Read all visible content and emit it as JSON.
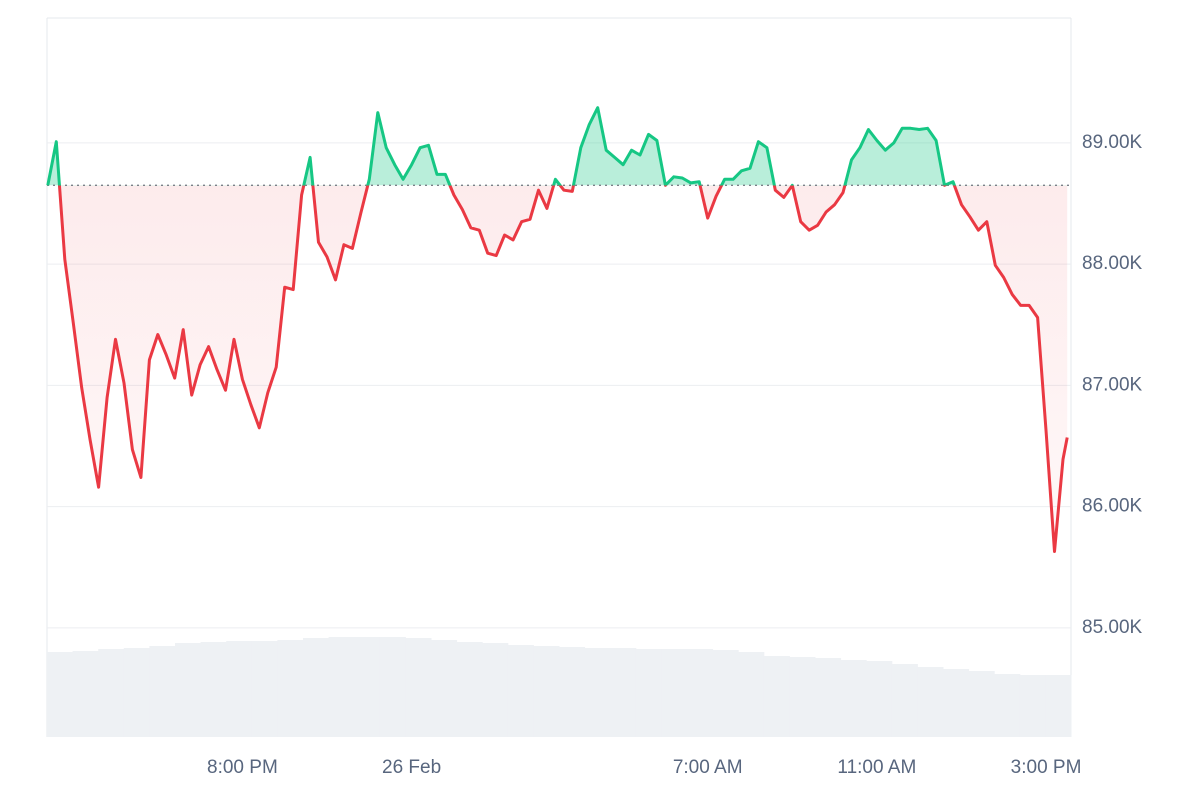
{
  "chart_data": {
    "type": "area-line",
    "x": [
      -8.6,
      -8.4,
      -8.2,
      -8.0,
      -7.8,
      -7.6,
      -7.4,
      -7.2,
      -7.0,
      -6.8,
      -6.6,
      -6.4,
      -6.2,
      -6.0,
      -5.8,
      -5.6,
      -5.4,
      -5.2,
      -5.0,
      -4.8,
      -4.6,
      -4.4,
      -4.2,
      -4.0,
      -3.8,
      -3.6,
      -3.4,
      -3.2,
      -3.0,
      -2.8,
      -2.6,
      -2.4,
      -2.2,
      -2.0,
      -1.8,
      -1.6,
      -1.4,
      -1.2,
      -1.0,
      -0.8,
      -0.6,
      -0.4,
      -0.2,
      0.0,
      0.2,
      0.4,
      0.6,
      0.8,
      1.0,
      1.2,
      1.4,
      1.6,
      1.8,
      2.0,
      2.2,
      2.4,
      2.6,
      2.8,
      3.0,
      3.2,
      3.4,
      3.6,
      3.8,
      4.0,
      4.2,
      4.4,
      4.6,
      4.8,
      5.0,
      5.2,
      5.4,
      5.6,
      5.8,
      6.0,
      6.2,
      6.4,
      6.6,
      6.8,
      7.0,
      7.2,
      7.4,
      7.6,
      7.8,
      8.0,
      8.2,
      8.4,
      8.6,
      8.8,
      9.0,
      9.2,
      9.4,
      9.6,
      9.8,
      10.0,
      10.2,
      10.4,
      10.6,
      10.8,
      11.0,
      11.2,
      11.4,
      11.6,
      11.8,
      12.0,
      12.2,
      12.4,
      12.6,
      12.8,
      13.0,
      13.2,
      13.4,
      13.6,
      13.8,
      14.0,
      14.2,
      14.4,
      14.6,
      14.8,
      15.0,
      15.2,
      15.4,
      15.5
    ],
    "values": [
      88650,
      89010,
      88040,
      87520,
      86980,
      86550,
      86160,
      86900,
      87380,
      87020,
      86470,
      86240,
      87210,
      87420,
      87250,
      87060,
      87460,
      86920,
      87170,
      87320,
      87130,
      86960,
      87380,
      87050,
      86840,
      86650,
      86940,
      87150,
      87810,
      87790,
      88570,
      88880,
      88180,
      88060,
      87870,
      88160,
      88130,
      88420,
      88700,
      89250,
      88960,
      88820,
      88700,
      88820,
      88960,
      88980,
      88740,
      88740,
      88570,
      88450,
      88300,
      88280,
      88090,
      88070,
      88240,
      88200,
      88350,
      88370,
      88610,
      88460,
      88700,
      88610,
      88600,
      88960,
      89150,
      89290,
      88940,
      88880,
      88820,
      88940,
      88900,
      89070,
      89020,
      88650,
      88720,
      88710,
      88670,
      88680,
      88380,
      88560,
      88700,
      88700,
      88770,
      88790,
      89010,
      88960,
      88610,
      88550,
      88650,
      88350,
      88280,
      88320,
      88430,
      88490,
      88590,
      88860,
      88960,
      89110,
      89020,
      88940,
      89000,
      89120,
      89120,
      89110,
      89120,
      89020,
      88650,
      88680,
      88490,
      88390,
      88280,
      88350,
      87990,
      87890,
      87750,
      87660,
      87660,
      87560,
      86630,
      85630,
      86390,
      86570
    ],
    "reference_line": 88650,
    "up_color": "#16c784",
    "down_color": "#ea3943",
    "volume": {
      "axis": "y2",
      "color": "#eef1f4",
      "values": [
        85,
        86,
        88,
        89,
        91,
        94,
        95,
        96,
        96,
        97,
        99,
        100,
        100,
        100,
        99,
        97,
        95,
        94,
        92,
        91,
        90,
        89,
        89,
        88,
        88,
        88,
        87,
        85,
        81,
        80,
        79,
        77,
        76,
        73,
        70,
        68,
        66,
        63,
        62,
        62
      ]
    },
    "xlim": [
      -8.62,
      15.59
    ],
    "xticks": [
      {
        "value": -4,
        "label": "8:00 PM"
      },
      {
        "value": 0,
        "label": "26 Feb"
      },
      {
        "value": 7,
        "label": "7:00 AM"
      },
      {
        "value": 11,
        "label": "11:00 AM"
      },
      {
        "value": 15,
        "label": "3:00 PM"
      }
    ],
    "ylim": [
      84100,
      90030
    ],
    "yticks": [
      {
        "value": 85000,
        "label": "85.00K"
      },
      {
        "value": 86000,
        "label": "86.00K"
      },
      {
        "value": 87000,
        "label": "87.00K"
      },
      {
        "value": 88000,
        "label": "88.00K"
      },
      {
        "value": 89000,
        "label": "89.00K"
      }
    ],
    "y2lim": [
      0,
      100
    ],
    "grid": true
  }
}
